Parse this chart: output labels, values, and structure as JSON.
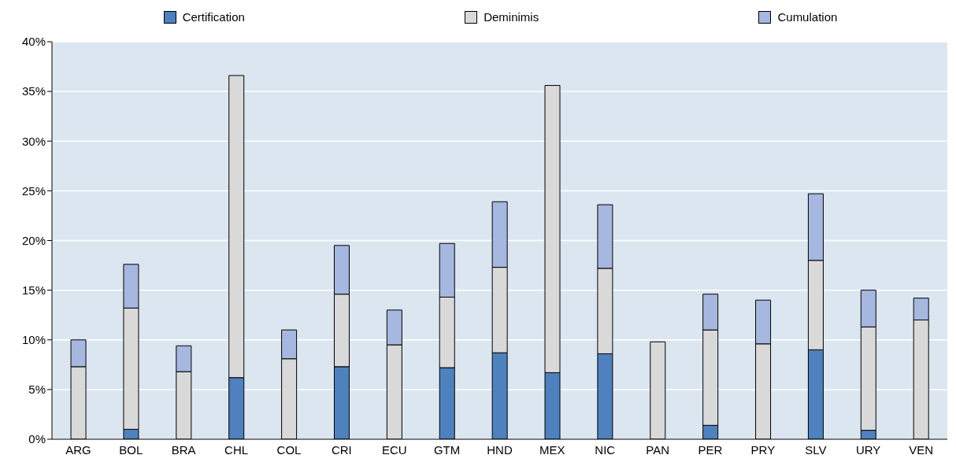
{
  "chart_data": {
    "type": "bar",
    "stacked": true,
    "categories": [
      "ARG",
      "BOL",
      "BRA",
      "CHL",
      "COL",
      "CRI",
      "ECU",
      "GTM",
      "HND",
      "MEX",
      "NIC",
      "PAN",
      "PER",
      "PRY",
      "SLV",
      "URY",
      "VEN"
    ],
    "series": [
      {
        "name": "Certification",
        "color": "#4e81bd",
        "values": [
          0,
          1.0,
          0,
          6.2,
          0,
          7.3,
          0,
          7.2,
          8.7,
          6.7,
          8.6,
          0,
          1.4,
          0,
          9.0,
          0.9,
          0
        ]
      },
      {
        "name": "Deminimis",
        "color": "#d9d9d9",
        "values": [
          7.3,
          12.2,
          6.8,
          30.4,
          8.1,
          7.3,
          9.5,
          7.1,
          8.6,
          28.9,
          8.6,
          9.8,
          9.6,
          9.6,
          9.0,
          10.4,
          12.0
        ]
      },
      {
        "name": "Cumulation",
        "color": "#a6b7e0",
        "values": [
          2.7,
          4.4,
          2.6,
          0,
          2.9,
          4.9,
          3.5,
          5.4,
          6.6,
          0,
          6.4,
          0,
          3.6,
          4.4,
          6.7,
          3.7,
          2.2
        ]
      }
    ],
    "ylim": [
      0,
      40
    ],
    "yticks": [
      {
        "value": 0,
        "label": "0%"
      },
      {
        "value": 5,
        "label": "5%"
      },
      {
        "value": 10,
        "label": "10%"
      },
      {
        "value": 15,
        "label": "15%"
      },
      {
        "value": 20,
        "label": "20%"
      },
      {
        "value": 25,
        "label": "25%"
      },
      {
        "value": 30,
        "label": "30%"
      },
      {
        "value": 35,
        "label": "35%"
      },
      {
        "value": 40,
        "label": "40%"
      }
    ],
    "grid": "y",
    "legend": "top"
  }
}
